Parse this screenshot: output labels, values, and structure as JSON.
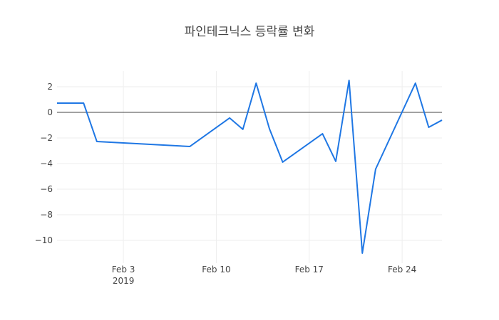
{
  "chart_data": {
    "type": "line",
    "title": "파인테크닉스 등락률 변화",
    "x": [
      "2019-01-29",
      "2019-01-31",
      "2019-02-01",
      "2019-02-08",
      "2019-02-11",
      "2019-02-12",
      "2019-02-13",
      "2019-02-14",
      "2019-02-15",
      "2019-02-18",
      "2019-02-19",
      "2019-02-20",
      "2019-02-21",
      "2019-02-22",
      "2019-02-25",
      "2019-02-26",
      "2019-02-27"
    ],
    "series": [
      {
        "color": "#1f77e4",
        "values": [
          0.72,
          0.72,
          -2.28,
          -2.67,
          -0.44,
          -1.33,
          2.28,
          -1.28,
          -3.89,
          -1.67,
          -3.83,
          2.5,
          -11.0,
          -4.44,
          2.28,
          -1.17,
          -0.61
        ]
      }
    ],
    "xlim": [
      "2019-01-29",
      "2019-02-27"
    ],
    "xticks": [
      {
        "value": "2019-02-03",
        "label": "Feb 3\n2019"
      },
      {
        "value": "2019-02-10",
        "label": "Feb 10"
      },
      {
        "value": "2019-02-17",
        "label": "Feb 17"
      },
      {
        "value": "2019-02-24",
        "label": "Feb 24"
      }
    ],
    "ylim": [
      -11.78,
      3.22
    ],
    "yticks": [
      2,
      0,
      {
        "value": -2,
        "label": "−2"
      },
      {
        "value": -4,
        "label": "−4"
      },
      {
        "value": -6,
        "label": "−6"
      },
      {
        "value": -8,
        "label": "−8"
      },
      {
        "value": -10,
        "label": "−10"
      }
    ],
    "grid": true,
    "zeroline": true
  }
}
